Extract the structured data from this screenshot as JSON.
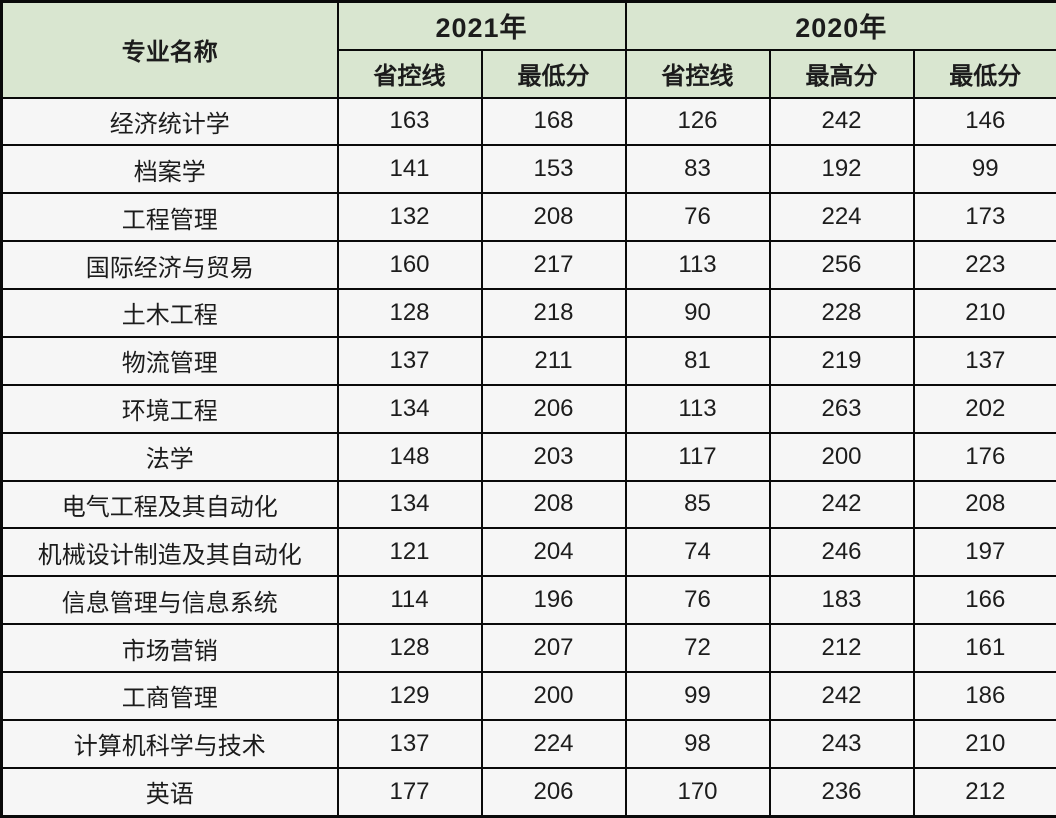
{
  "chart_data": {
    "type": "table",
    "major_column_header": "专业名称",
    "year_groups": [
      {
        "label": "2021年",
        "subheaders": [
          "省控线",
          "最低分"
        ]
      },
      {
        "label": "2020年",
        "subheaders": [
          "省控线",
          "最高分",
          "最低分"
        ]
      }
    ],
    "columns_flat": [
      "专业名称",
      "2021年 省控线",
      "2021年 最低分",
      "2020年 省控线",
      "2020年 最高分",
      "2020年 最低分"
    ],
    "rows": [
      {
        "major": "经济统计学",
        "values": [
          163,
          168,
          126,
          242,
          146
        ]
      },
      {
        "major": "档案学",
        "values": [
          141,
          153,
          83,
          192,
          99
        ]
      },
      {
        "major": "工程管理",
        "values": [
          132,
          208,
          76,
          224,
          173
        ]
      },
      {
        "major": "国际经济与贸易",
        "values": [
          160,
          217,
          113,
          256,
          223
        ]
      },
      {
        "major": "土木工程",
        "values": [
          128,
          218,
          90,
          228,
          210
        ]
      },
      {
        "major": "物流管理",
        "values": [
          137,
          211,
          81,
          219,
          137
        ]
      },
      {
        "major": "环境工程",
        "values": [
          134,
          206,
          113,
          263,
          202
        ]
      },
      {
        "major": "法学",
        "values": [
          148,
          203,
          117,
          200,
          176
        ]
      },
      {
        "major": "电气工程及其自动化",
        "values": [
          134,
          208,
          85,
          242,
          208
        ]
      },
      {
        "major": "机械设计制造及其自动化",
        "values": [
          121,
          204,
          74,
          246,
          197
        ]
      },
      {
        "major": "信息管理与信息系统",
        "values": [
          114,
          196,
          76,
          183,
          166
        ]
      },
      {
        "major": "市场营销",
        "values": [
          128,
          207,
          72,
          212,
          161
        ]
      },
      {
        "major": "工商管理",
        "values": [
          129,
          200,
          99,
          242,
          186
        ]
      },
      {
        "major": "计算机科学与技术",
        "values": [
          137,
          224,
          98,
          243,
          210
        ]
      },
      {
        "major": "英语",
        "values": [
          177,
          206,
          170,
          236,
          212
        ]
      }
    ]
  },
  "colors": {
    "header_bg": "#d9e6d0",
    "body_bg": "#f6f6f6",
    "border": "#0a0a0a",
    "text": "#1c1c1c"
  }
}
